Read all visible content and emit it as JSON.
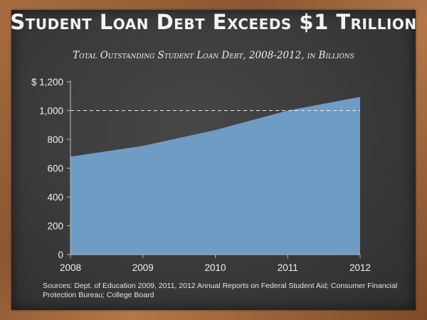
{
  "title": "Student Loan Debt Exceeds $1 Trillion",
  "subtitle": "Total Outstanding Student Loan Debt, 2008-2012, in Billions",
  "source": "Sources: Dept. of Education 2009, 2011, 2012 Annual Reports on Federal Student Aid; Consumer Financial Protection Bureau; College Board",
  "colors": {
    "area_fill": "#6e9cc4",
    "area_edge": "#8db7db",
    "reference_line": "#ffffff",
    "text": "#f0f0f0",
    "axis": "#bcbcbc"
  },
  "chart_data": {
    "type": "area",
    "title": "Student Loan Debt Exceeds $1 Trillion",
    "subtitle": "Total Outstanding Student Loan Debt, 2008-2012, in Billions",
    "x": [
      2008,
      2009,
      2010,
      2011,
      2012
    ],
    "x_tick_labels": [
      "2008",
      "2009",
      "2010",
      "2011",
      "2012"
    ],
    "series": [
      {
        "values": [
          680,
          755,
          865,
          1000,
          1095
        ]
      }
    ],
    "ylim": [
      0,
      1200
    ],
    "y_ticks": [
      0,
      200,
      400,
      600,
      800,
      1000,
      1200
    ],
    "y_tick_labels": [
      "0",
      "200",
      "400",
      "600",
      "800",
      "1,000",
      "$ 1,200"
    ],
    "reference_line": {
      "y": 1000,
      "style": "dashed"
    },
    "grid": false,
    "legend": "none"
  }
}
